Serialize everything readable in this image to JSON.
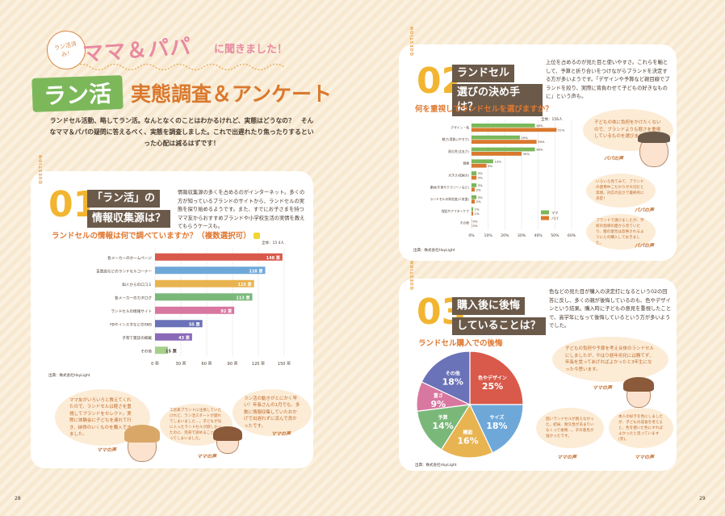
{
  "header": {
    "kicker": "ラン活済み！",
    "subtitle": "ママ＆パパ",
    "subtitle_tail": "に聞きました！",
    "badge": "ラン活",
    "title": "実態調査＆アンケート",
    "intro": "ランドセル活動、略してラン活。なんとなくのことはわかるけれど、実態はどうなの？　そんなママ＆パパの疑問に答えるべく、実態を調査しました。これで出遅れたり焦ったりするといった心配は減るはずです！"
  },
  "q1": {
    "label": "QUESTION",
    "num": "01",
    "title_line1": "「ラン活」の",
    "title_line2": "情報収集源は？",
    "desc": "情報収集源の多くを占めるのがインターネット。多くの方が知っているブランドのサイトから、ランドセルの実態を探り始めるようです。また、すでにお子さまを持つママ友からおすすめブランドや小学校生活の実情を教えてもらうケースも。",
    "chart_heading": "ランドセルの情報は何で調べていますか？（複数選択可）",
    "legend": "全体：15 4人",
    "source": "出典：株式会社HayLight",
    "bubbles": [
      "ママ友がいろいろと教えてくれたので、ランドセルは軽さを重視してブランドをセレクト。実際に体験会に子どもを連れて行き、納得のいくものを購入できました。",
      "工房系ブランドに注目していたけれど、ラン活スタートが遅れてしまいました…。子どもが気に入ったランドセルが欲しかったのに、完売で諦めることになってしまいました。",
      "ラン活の動きがとにかく早い！年長さんの1月でも、多数に情報収集していたおかげで出遅れずに済んで良かったです。"
    ],
    "sig": "ママの声"
  },
  "q2": {
    "label": "QUESTION",
    "num": "02",
    "title_line1": "ランドセル",
    "title_line2": "選びの決め手は？",
    "desc": "上位を占めるのが見た目と使いやすさ。これらを軸として、予算と折り合いをつけながらブランドを決定する方が多いようです。「デザインや予算など親目線でブランドを絞り、実際に背負わせて子どもの好きなものに」という声も。",
    "chart_heading": "何を重視してランドセルを選びますか？",
    "legend": "全体：156人",
    "legend_items": [
      "ママ",
      "パパ"
    ],
    "source": "出典：株式会社HayLight",
    "bubbles": [
      "子どもの体に負担をかけたくないので、ブランドよりも軽さを重視しているものを選びました。",
      "いろいろ見てみて、ブランドの使用中こだわりが大切だと実感。対応の良さで最終的に決定！",
      "ブランドで選びましたが、学校の指導の面から見ていたり、親の意見は反映されるようにとの購入しておきました。"
    ],
    "sig": "パパの声"
  },
  "q3": {
    "label": "QUESTION",
    "num": "03",
    "title_line1": "購入後に後悔",
    "title_line2": "していることは？",
    "desc": "色などの見た目が購入の決定打になるという02の回答に反し、多くの親が後悔しているのも、色やデザインという結果。購入時に子どもの意見を重視したことで、高学年になって後悔しているという方が多いようでした。",
    "chart_heading": "ランドセル購入での後悔",
    "source": "出典：株式会社HayLight",
    "bubbles": [
      "子どもの負担や予算を考え合体のランドセルにしましたが、やはり経年劣化には勝てず、年長を覚ってあげればよかったと3年生になった今思います。",
      "固いランドセルが買えなかった。結局、耐久性があまりいなくって後悔…。子の意見が強かったです。",
      "本人の好きを色にしましたが、子どもの成長を考えると、色を使いた色にすればよかったと思っています(笑)。"
    ],
    "sig": "ママの声"
  },
  "pages": {
    "left": "28",
    "right": "29"
  },
  "colors": {
    "bg": "#fbf1e0",
    "green": "#7cb85a",
    "orange": "#d9792e",
    "yellow": "#f2b531",
    "brown": "#6b5a4a",
    "bubble": "#fcecd6"
  },
  "chart_data": [
    {
      "type": "bar",
      "orientation": "horizontal",
      "title": "ランドセルの情報は何で調べていますか？（複数選択可）",
      "categories": [
        "各メーカーのホームページ",
        "百貨店などのランドセルコーナー",
        "知人からの口コミ",
        "各メーカーのカタログ",
        "ランドセルの情報サイト",
        "FBやインスタなどのSNS",
        "子育て雑誌の掲載",
        "その他"
      ],
      "values": [
        148,
        128,
        115,
        113,
        92,
        55,
        43,
        15
      ],
      "value_labels": [
        "148 票",
        "128 票",
        "115 票",
        "113 票",
        "92 票",
        "55 票",
        "43 票",
        "15 票"
      ],
      "bar_colors": [
        "#d9594a",
        "#6ea8d9",
        "#e8b451",
        "#7ab87a",
        "#d877a0",
        "#6a72b8",
        "#8a6ab8",
        "#a6d08a"
      ],
      "xlim": [
        0,
        150
      ],
      "xticks": [
        "0 票",
        "30 票",
        "60 票",
        "90 票",
        "120 票",
        "150 票"
      ]
    },
    {
      "type": "bar",
      "orientation": "horizontal",
      "title": "何を重視してランドセルを選びますか？",
      "categories": [
        "デザイン・色",
        "軽さ(背負いやすさ)",
        "耐久性(丈夫さ)",
        "価格",
        "大きさ(収納力)",
        "素材(牛革やクラリーノなど)",
        "ランドセルの知名度(人気度)",
        "保証やアフターケア",
        "その他"
      ],
      "series": [
        {
          "name": "ママ",
          "color": "#7ab85a",
          "values": [
            38,
            29,
            38,
            13,
            3,
            3,
            3,
            1,
            0
          ]
        },
        {
          "name": "パパ",
          "color": "#d9792e",
          "values": [
            51,
            39,
            30,
            9,
            3,
            2,
            2,
            1,
            0
          ]
        }
      ],
      "value_labels": [
        [
          "38%",
          "51%"
        ],
        [
          "29%",
          "39%"
        ],
        [
          "38%",
          "30%"
        ],
        [
          "13%",
          "9%"
        ],
        [
          "3%",
          "3%"
        ],
        [
          "3%",
          "2%"
        ],
        [
          "3%",
          "2%"
        ],
        [
          "1%",
          "1%"
        ],
        [
          "0%",
          "0%"
        ]
      ],
      "xlim": [
        0,
        60
      ],
      "xticks": [
        "0%",
        "10%",
        "20%",
        "30%",
        "40%",
        "50%",
        "60%"
      ]
    },
    {
      "type": "pie",
      "title": "ランドセル購入での後悔",
      "slices": [
        {
          "label": "色やデザイン",
          "value": 25,
          "text": "25%",
          "color": "#d9594a"
        },
        {
          "label": "サイズ",
          "value": 18,
          "text": "18%",
          "color": "#6ea8d9"
        },
        {
          "label": "機能",
          "value": 16,
          "text": "16%",
          "color": "#e8b451"
        },
        {
          "label": "予算",
          "value": 14,
          "text": "14%",
          "color": "#7ab87a"
        },
        {
          "label": "重さ",
          "value": 9,
          "text": "9%",
          "color": "#d877a0"
        },
        {
          "label": "その他",
          "value": 18,
          "text": "18%",
          "color": "#6a72b8"
        }
      ]
    }
  ]
}
